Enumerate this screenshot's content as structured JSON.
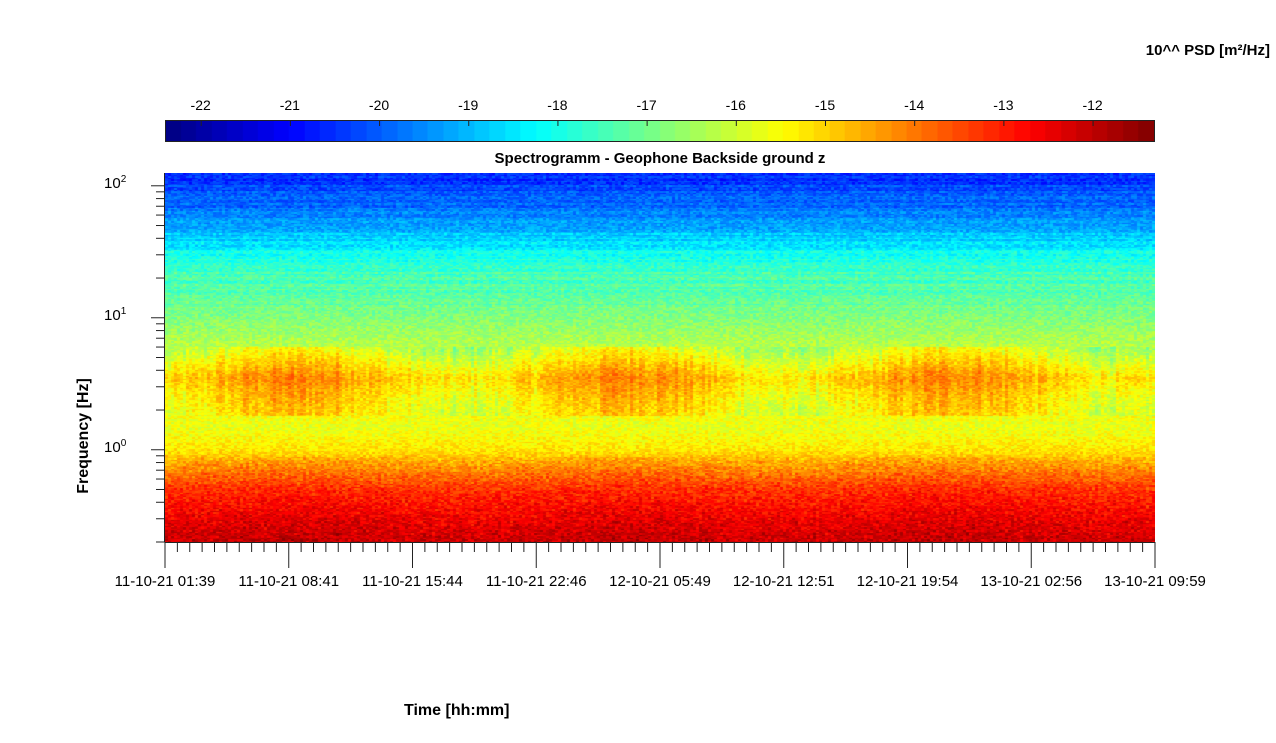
{
  "chart_data": {
    "type": "heatmap",
    "title": "Spectrogramm - Geophone Backside ground z",
    "xlabel": "Time [hh:mm]",
    "ylabel": "Frequency [Hz]",
    "x_tick_labels": [
      "11-10-21  01:39",
      "11-10-21  08:41",
      "11-10-21  15:44",
      "11-10-21  22:46",
      "12-10-21  05:49",
      "12-10-21  12:51",
      "12-10-21  19:54",
      "13-10-21  02:56",
      "13-10-21  09:59"
    ],
    "y_scale": "log",
    "y_ticks": [
      {
        "base": "10",
        "exp": "0",
        "value": 1
      },
      {
        "base": "10",
        "exp": "1",
        "value": 10
      },
      {
        "base": "10",
        "exp": "2",
        "value": 100
      }
    ],
    "ylim": [
      0.2,
      125
    ],
    "colorbar": {
      "label": "10^^ PSD [m²/Hz]",
      "ticks": [
        "-22",
        "-21",
        "-20",
        "-19",
        "-18",
        "-17",
        "-16",
        "-15",
        "-14",
        "-13",
        "-12"
      ],
      "range": [
        -22.4,
        -11.3
      ],
      "colormap": "jet"
    },
    "psd_profile_by_frequency": [
      {
        "freq_hz": 0.2,
        "log_psd": -12.2
      },
      {
        "freq_hz": 0.3,
        "log_psd": -12.6
      },
      {
        "freq_hz": 0.5,
        "log_psd": -13.3
      },
      {
        "freq_hz": 0.7,
        "log_psd": -14.2
      },
      {
        "freq_hz": 1.0,
        "log_psd": -15.2
      },
      {
        "freq_hz": 1.5,
        "log_psd": -15.7
      },
      {
        "freq_hz": 2.5,
        "log_psd": -15.3
      },
      {
        "freq_hz": 3.5,
        "log_psd": -14.8
      },
      {
        "freq_hz": 6,
        "log_psd": -16.2
      },
      {
        "freq_hz": 10,
        "log_psd": -16.8
      },
      {
        "freq_hz": 16,
        "log_psd": -17.3
      },
      {
        "freq_hz": 25,
        "log_psd": -17.6
      },
      {
        "freq_hz": 40,
        "log_psd": -18.7
      },
      {
        "freq_hz": 70,
        "log_psd": -19.8
      },
      {
        "freq_hz": 125,
        "log_psd": -20.6
      }
    ]
  }
}
